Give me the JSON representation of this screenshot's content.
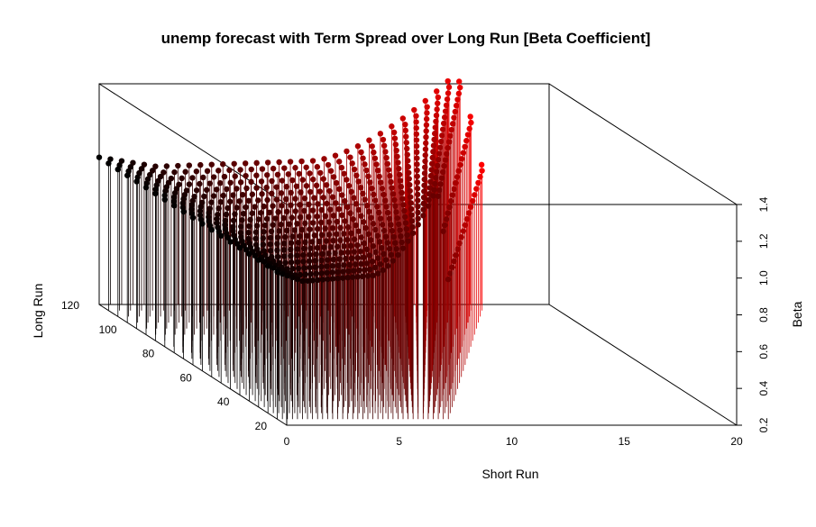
{
  "chart_data": {
    "type": "scatter",
    "subtype": "3d-scatter-with-drop-lines",
    "title": "unemp forecast with Term Spread over Long Run [Beta Coefficient]",
    "xlabel": "Short Run",
    "ylabel": "Long Run",
    "zlabel": "Beta",
    "xlim": [
      0,
      20
    ],
    "ylim": [
      20,
      120
    ],
    "zlim": [
      0.2,
      1.4
    ],
    "x_ticks": [
      "0",
      "5",
      "10",
      "15",
      "20"
    ],
    "y_ticks": [
      "20",
      "40",
      "60",
      "80",
      "100",
      "120"
    ],
    "z_ticks": [
      "0.2",
      "0.4",
      "0.6",
      "0.8",
      "1.0",
      "1.2",
      "1.4"
    ],
    "drop_lines": true,
    "grid": false,
    "colors": {
      "low_short_run": "#000000",
      "high_short_run": "#ff0000"
    },
    "series_shape": {
      "long_run_levels": [
        120,
        115,
        110,
        105,
        100,
        95,
        90,
        85,
        80,
        75,
        70,
        65,
        60,
        55,
        50,
        45,
        40,
        35,
        30,
        25
      ],
      "short_run_max": [
        17,
        16.6,
        16.1,
        15.6,
        15.1,
        14.6,
        14.1,
        13.6,
        13.1,
        12.6,
        12.1,
        11.6,
        11.1,
        10.6,
        10.1,
        9.6,
        9.1,
        8.6,
        8.1,
        7.6
      ],
      "beta_start": 1.0,
      "beta_dip": 0.95,
      "beta_peak": 1.45,
      "beta_end": 0.96
    }
  }
}
